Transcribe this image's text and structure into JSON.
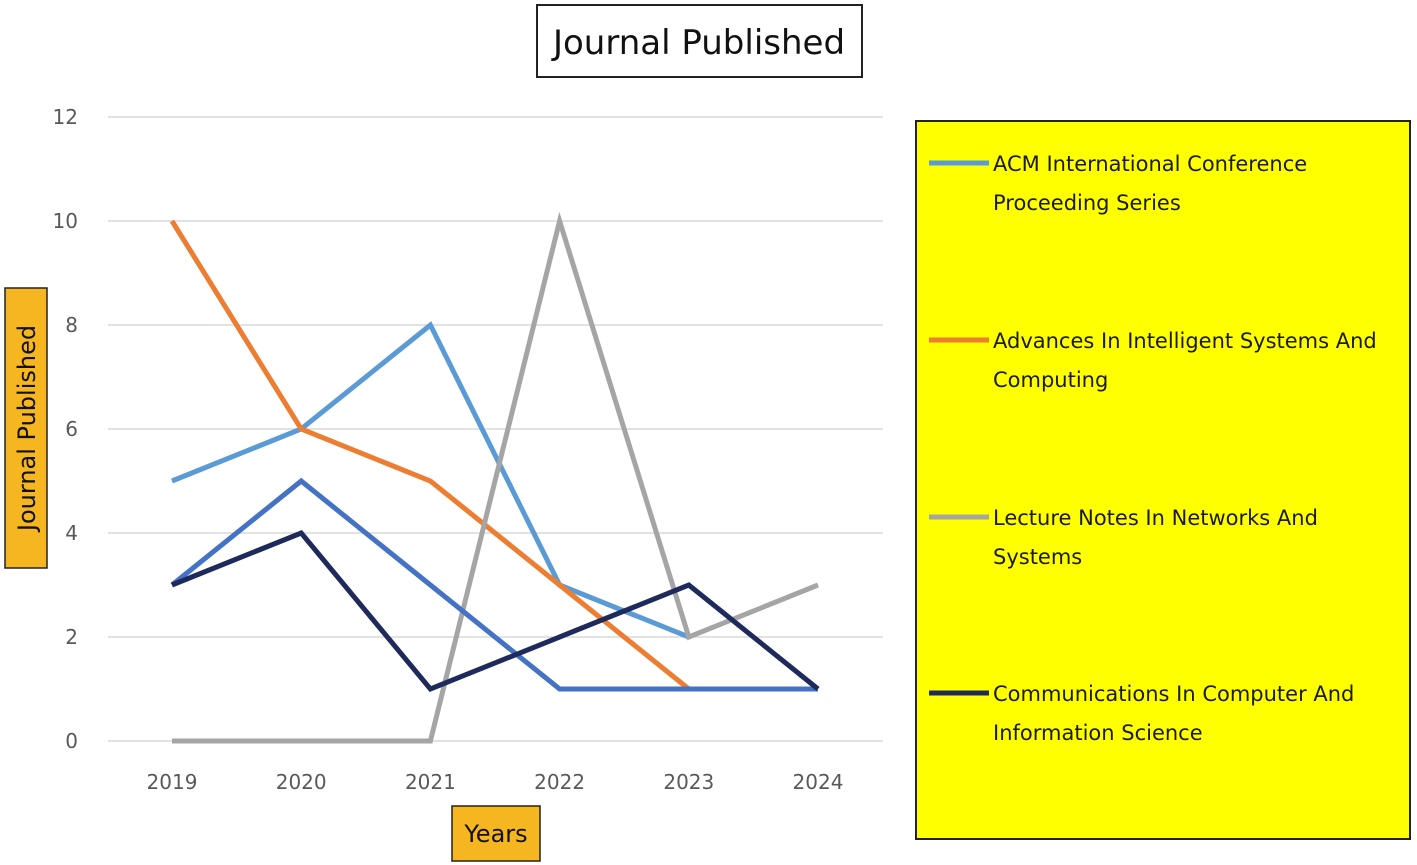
{
  "chart_data": {
    "type": "line",
    "title": "Journal Published",
    "xlabel": "Years",
    "ylabel": "Journal Published",
    "x": [
      "2019",
      "2020",
      "2021",
      "2022",
      "2023",
      "2024"
    ],
    "ylim": [
      0,
      12
    ],
    "yticks": [
      "0",
      "2",
      "4",
      "6",
      "8",
      "10",
      "12"
    ],
    "grid": true,
    "legend_placement": "right",
    "series": [
      {
        "name": "ACM International Conference Proceeding Series",
        "legend_lines": [
          "ACM International Conference",
          "Proceeding Series"
        ],
        "color": "#5B9BD5",
        "values": [
          5,
          6,
          8,
          3,
          2,
          null
        ]
      },
      {
        "name": "Advances In Intelligent Systems And Computing",
        "legend_lines": [
          "Advances In Intelligent Systems And",
          "Computing"
        ],
        "color": "#ED7D31",
        "values": [
          10,
          6,
          5,
          3,
          1,
          null
        ]
      },
      {
        "name": "Lecture Notes In Networks And Systems",
        "legend_lines": [
          "Lecture Notes In Networks And",
          "Systems"
        ],
        "color": "#A5A5A5",
        "values": [
          0,
          0,
          0,
          10,
          2,
          3
        ]
      },
      {
        "name": "",
        "legend_lines": [],
        "color": "#4472C4",
        "values": [
          3,
          5,
          3,
          1,
          1,
          1
        ]
      },
      {
        "name": "Communications In Computer And Information Science",
        "legend_lines": [
          "Communications In Computer And",
          "Information Science"
        ],
        "color": "#1F2A5C",
        "values": [
          3,
          4,
          1,
          2,
          3,
          1
        ]
      }
    ],
    "legend_background": "#FFFF00",
    "axis_title_background": "#F5B620"
  }
}
